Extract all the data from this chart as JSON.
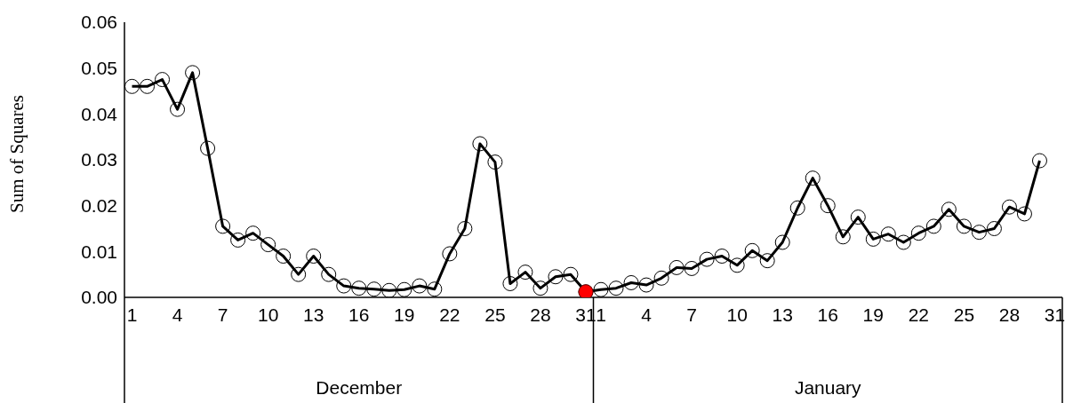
{
  "chart_data": {
    "type": "line",
    "ylabel": "Sum of Squares",
    "categories": [
      "1",
      null,
      null,
      "4",
      null,
      null,
      "7",
      null,
      null,
      "10",
      null,
      null,
      "13",
      null,
      null,
      "16",
      null,
      null,
      "19",
      null,
      null,
      "22",
      null,
      null,
      "25",
      null,
      null,
      "28",
      null,
      null,
      "31",
      "1",
      null,
      null,
      "4",
      null,
      null,
      "7",
      null,
      null,
      "10",
      null,
      null,
      "13",
      null,
      null,
      "16",
      null,
      null,
      "19",
      null,
      null,
      "22",
      null,
      null,
      "25",
      null,
      null,
      "28",
      null,
      null,
      "31"
    ],
    "annotations": [
      "December",
      "January"
    ],
    "series": [
      {
        "type": "line",
        "color": "#000000",
        "marker": "circle",
        "values": [
          0.046,
          0.046,
          0.0475,
          0.041,
          0.049,
          0.0325,
          0.0155,
          0.0125,
          0.014,
          0.0115,
          0.009,
          0.005,
          0.009,
          0.005,
          0.0025,
          0.002,
          0.0018,
          0.0015,
          0.0017,
          0.0025,
          0.0018,
          0.0095,
          0.015,
          0.0335,
          0.0295,
          0.003,
          0.0055,
          0.002,
          0.0045,
          0.005,
          0.0012,
          0.0017,
          0.002,
          0.0032,
          0.0027,
          0.0042,
          0.0065,
          0.0063,
          0.0083,
          0.009,
          0.007,
          0.0102,
          0.008,
          0.012,
          0.0195,
          0.026,
          0.02,
          0.0132,
          0.0175,
          0.0127,
          0.0138,
          0.012,
          0.014,
          0.0155,
          0.0192,
          0.0155,
          0.0142,
          0.015,
          0.0197,
          0.0182,
          0.0298,
          null
        ]
      },
      {
        "type": "scatter",
        "color": "#ff0000",
        "marker": "circle",
        "values": [
          null,
          null,
          null,
          null,
          null,
          null,
          null,
          null,
          null,
          null,
          null,
          null,
          null,
          null,
          null,
          null,
          null,
          null,
          null,
          null,
          null,
          null,
          null,
          null,
          null,
          null,
          null,
          null,
          null,
          null,
          0.0012,
          null,
          null,
          null,
          null,
          null,
          null,
          null,
          null,
          null,
          null,
          null,
          null,
          null,
          null,
          null,
          null,
          null,
          null,
          null,
          null,
          null,
          null,
          null,
          null,
          null,
          null,
          null,
          null,
          null,
          null,
          null
        ]
      }
    ],
    "ylim": [
      0,
      0.06
    ],
    "yticks": [
      {
        "value": 0,
        "label": "0.00"
      },
      {
        "value": 0.01,
        "label": "0.01"
      },
      {
        "value": 0.02,
        "label": "0.02"
      },
      {
        "value": 0.03,
        "label": "0.03"
      },
      {
        "value": 0.04,
        "label": "0.04"
      },
      {
        "value": 0.05,
        "label": "0.05"
      },
      {
        "value": 0.06,
        "label": "0.06"
      }
    ],
    "grid": false
  }
}
